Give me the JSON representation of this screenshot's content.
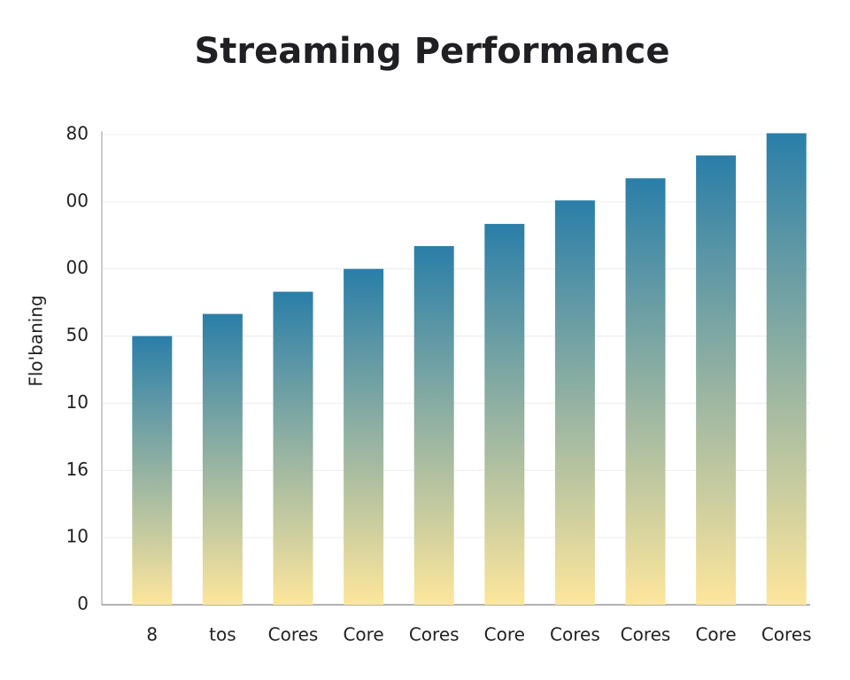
{
  "chart_data": {
    "type": "bar",
    "title": "Streaming Performance",
    "y_label": "Flo'baning",
    "categories": [
      "8",
      "tos",
      "Cores",
      "Core",
      "Cores",
      "Core",
      "Cores",
      "Cores",
      "Core",
      "Cores"
    ],
    "values": [
      40,
      43.3,
      46.6,
      50,
      53.4,
      56.7,
      60.2,
      63.5,
      66.9,
      70.2
    ],
    "color": "#2a7ea8",
    "color_bottom": "#fde69c",
    "ylim": [
      0,
      70.5
    ],
    "yticks": [
      0,
      10,
      {
        "value": 20,
        "label": "16"
      },
      {
        "value": 30,
        "label": "10"
      },
      {
        "value": 40,
        "label": "50"
      },
      {
        "value": 50,
        "label": "00"
      },
      {
        "value": 60,
        "label": "00"
      },
      {
        "value": 70,
        "label": "80"
      }
    ],
    "grid": true
  }
}
